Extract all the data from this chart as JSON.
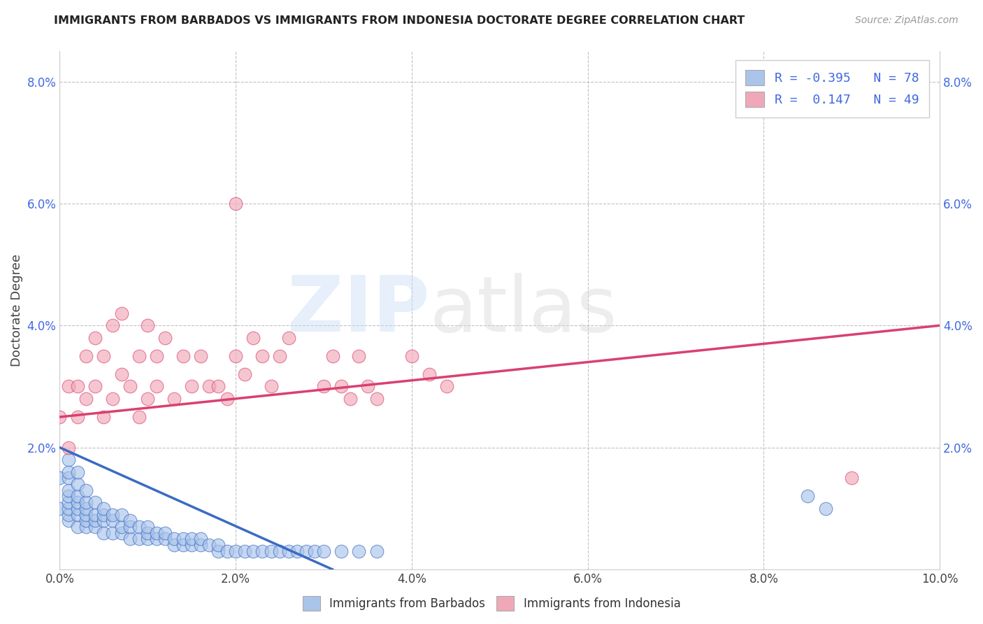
{
  "title": "IMMIGRANTS FROM BARBADOS VS IMMIGRANTS FROM INDONESIA DOCTORATE DEGREE CORRELATION CHART",
  "source_text": "Source: ZipAtlas.com",
  "ylabel": "Doctorate Degree",
  "xlim": [
    0.0,
    0.1
  ],
  "ylim": [
    0.0,
    0.085
  ],
  "xtick_labels": [
    "0.0%",
    "2.0%",
    "4.0%",
    "6.0%",
    "8.0%",
    "10.0%"
  ],
  "xtick_values": [
    0.0,
    0.02,
    0.04,
    0.06,
    0.08,
    0.1
  ],
  "ytick_labels": [
    "2.0%",
    "4.0%",
    "6.0%",
    "8.0%"
  ],
  "ytick_values": [
    0.02,
    0.04,
    0.06,
    0.08
  ],
  "barbados_color": "#aac4ea",
  "indonesia_color": "#f0a8b8",
  "barbados_line_color": "#3a6bc4",
  "indonesia_line_color": "#d94070",
  "R_barbados": -0.395,
  "N_barbados": 78,
  "R_indonesia": 0.147,
  "N_indonesia": 49,
  "barbados_label": "Immigrants from Barbados",
  "indonesia_label": "Immigrants from Indonesia",
  "barbados_line_x": [
    0.0,
    0.031
  ],
  "barbados_line_y": [
    0.02,
    0.0
  ],
  "indonesia_line_x": [
    0.0,
    0.1
  ],
  "indonesia_line_y": [
    0.025,
    0.04
  ],
  "scatter_barbados_x": [
    0.0,
    0.0,
    0.001,
    0.001,
    0.001,
    0.001,
    0.001,
    0.001,
    0.001,
    0.001,
    0.001,
    0.002,
    0.002,
    0.002,
    0.002,
    0.002,
    0.002,
    0.002,
    0.003,
    0.003,
    0.003,
    0.003,
    0.003,
    0.003,
    0.004,
    0.004,
    0.004,
    0.004,
    0.005,
    0.005,
    0.005,
    0.005,
    0.006,
    0.006,
    0.006,
    0.007,
    0.007,
    0.007,
    0.008,
    0.008,
    0.008,
    0.009,
    0.009,
    0.01,
    0.01,
    0.01,
    0.011,
    0.011,
    0.012,
    0.012,
    0.013,
    0.013,
    0.014,
    0.014,
    0.015,
    0.015,
    0.016,
    0.016,
    0.017,
    0.018,
    0.018,
    0.019,
    0.02,
    0.021,
    0.022,
    0.023,
    0.024,
    0.025,
    0.026,
    0.027,
    0.028,
    0.029,
    0.03,
    0.032,
    0.034,
    0.036,
    0.085,
    0.087
  ],
  "scatter_barbados_y": [
    0.01,
    0.015,
    0.008,
    0.009,
    0.01,
    0.011,
    0.012,
    0.013,
    0.015,
    0.016,
    0.018,
    0.007,
    0.009,
    0.01,
    0.011,
    0.012,
    0.014,
    0.016,
    0.007,
    0.008,
    0.009,
    0.01,
    0.011,
    0.013,
    0.007,
    0.008,
    0.009,
    0.011,
    0.006,
    0.008,
    0.009,
    0.01,
    0.006,
    0.008,
    0.009,
    0.006,
    0.007,
    0.009,
    0.005,
    0.007,
    0.008,
    0.005,
    0.007,
    0.005,
    0.006,
    0.007,
    0.005,
    0.006,
    0.005,
    0.006,
    0.004,
    0.005,
    0.004,
    0.005,
    0.004,
    0.005,
    0.004,
    0.005,
    0.004,
    0.003,
    0.004,
    0.003,
    0.003,
    0.003,
    0.003,
    0.003,
    0.003,
    0.003,
    0.003,
    0.003,
    0.003,
    0.003,
    0.003,
    0.003,
    0.003,
    0.003,
    0.012,
    0.01
  ],
  "scatter_indonesia_x": [
    0.0,
    0.001,
    0.001,
    0.002,
    0.002,
    0.003,
    0.003,
    0.004,
    0.004,
    0.005,
    0.005,
    0.006,
    0.006,
    0.007,
    0.007,
    0.008,
    0.009,
    0.009,
    0.01,
    0.01,
    0.011,
    0.011,
    0.012,
    0.013,
    0.014,
    0.015,
    0.016,
    0.017,
    0.018,
    0.019,
    0.02,
    0.021,
    0.022,
    0.023,
    0.024,
    0.025,
    0.026,
    0.03,
    0.031,
    0.032,
    0.033,
    0.034,
    0.035,
    0.036,
    0.04,
    0.042,
    0.044,
    0.09,
    0.02
  ],
  "scatter_indonesia_y": [
    0.025,
    0.02,
    0.03,
    0.025,
    0.03,
    0.028,
    0.035,
    0.03,
    0.038,
    0.025,
    0.035,
    0.04,
    0.028,
    0.032,
    0.042,
    0.03,
    0.035,
    0.025,
    0.028,
    0.04,
    0.03,
    0.035,
    0.038,
    0.028,
    0.035,
    0.03,
    0.035,
    0.03,
    0.03,
    0.028,
    0.035,
    0.032,
    0.038,
    0.035,
    0.03,
    0.035,
    0.038,
    0.03,
    0.035,
    0.03,
    0.028,
    0.035,
    0.03,
    0.028,
    0.035,
    0.032,
    0.03,
    0.015,
    0.06
  ]
}
